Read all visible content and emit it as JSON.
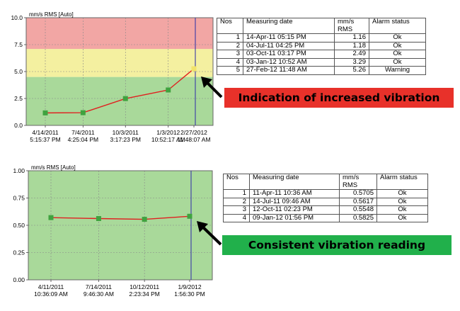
{
  "chart_data": [
    {
      "type": "line",
      "title": "mm/s RMS [Auto]",
      "ylim": [
        0,
        10
      ],
      "yticks": [
        "0.0",
        "2.5",
        "5.0",
        "7.5",
        "10.0"
      ],
      "x": [
        "2011-04-14 17:15:37",
        "2011-07-04 16:25:04",
        "2011-10-03 15:17:23",
        "2012-01-03 10:52:17",
        "2012-02-27 11:48:07"
      ],
      "xtick_labels": [
        [
          "4/14/2011",
          "5:15:37 PM"
        ],
        [
          "7/4/2011",
          "4:25:04 PM"
        ],
        [
          "10/3/2011",
          "3:17:23 PM"
        ],
        [
          "1/3/2012",
          "10:52:17 AM"
        ],
        [
          "2/27/2012",
          "11:48:07 AM"
        ]
      ],
      "values": [
        1.16,
        1.18,
        2.49,
        3.29,
        5.26
      ],
      "bands": [
        {
          "from": 0,
          "to": 4.5,
          "color": "#a9d99a"
        },
        {
          "from": 4.5,
          "to": 7.1,
          "color": "#f4f0a0"
        },
        {
          "from": 7.1,
          "to": 10,
          "color": "#f2a6a4"
        }
      ],
      "line_color": "#e02020",
      "marker_color": "#3fa33f",
      "last_marker_color": "#f2e36a",
      "grid": true
    },
    {
      "type": "line",
      "title": "mm/s RMS [Auto]",
      "ylim": [
        0,
        1
      ],
      "yticks": [
        "0.00",
        "0.25",
        "0.50",
        "0.75",
        "1.00"
      ],
      "x": [
        "2011-04-11 10:36:09",
        "2011-07-14 09:46:30",
        "2011-10-12 14:23:34",
        "2012-01-09 13:56:30"
      ],
      "xtick_labels": [
        [
          "4/11/2011",
          "10:36:09 AM"
        ],
        [
          "7/14/2011",
          "9:46:30 AM"
        ],
        [
          "10/12/2011",
          "2:23:34 PM"
        ],
        [
          "1/9/2012",
          "1:56:30 PM"
        ]
      ],
      "values": [
        0.5705,
        0.5617,
        0.5548,
        0.5825
      ],
      "bands": [
        {
          "from": 0,
          "to": 1,
          "color": "#a9d99a"
        }
      ],
      "line_color": "#e02020",
      "marker_color": "#3fa33f",
      "grid": true
    }
  ],
  "table1": {
    "headers": [
      "Nos",
      "Measuring date",
      "mm/s RMS",
      "Alarm status"
    ],
    "rows": [
      [
        "1",
        "14-Apr-11 05:15 PM",
        "1.16",
        "Ok"
      ],
      [
        "2",
        "04-Jul-11 04:25 PM",
        "1.18",
        "Ok"
      ],
      [
        "3",
        "03-Oct-11 03:17 PM",
        "2.49",
        "Ok"
      ],
      [
        "4",
        "03-Jan-12 10:52 AM",
        "3.29",
        "Ok"
      ],
      [
        "5",
        "27-Feb-12 11:48 AM",
        "5.26",
        "Warning"
      ]
    ]
  },
  "table2": {
    "headers": [
      "Nos",
      "Measuring date",
      "mm/s RMS",
      "Alarm status"
    ],
    "rows": [
      [
        "1",
        "11-Apr-11 10:36 AM",
        "0.5705",
        "Ok"
      ],
      [
        "2",
        "14-Jul-11 09:46 AM",
        "0.5617",
        "Ok"
      ],
      [
        "3",
        "12-Oct-11 02:23 PM",
        "0.5548",
        "Ok"
      ],
      [
        "4",
        "09-Jan-12 01:56 PM",
        "0.5825",
        "Ok"
      ]
    ]
  },
  "banner1": {
    "text": "Indication of increased vibration",
    "color": "#e8312a"
  },
  "banner2": {
    "text": "Consistent vibration reading",
    "color": "#21b04b"
  }
}
